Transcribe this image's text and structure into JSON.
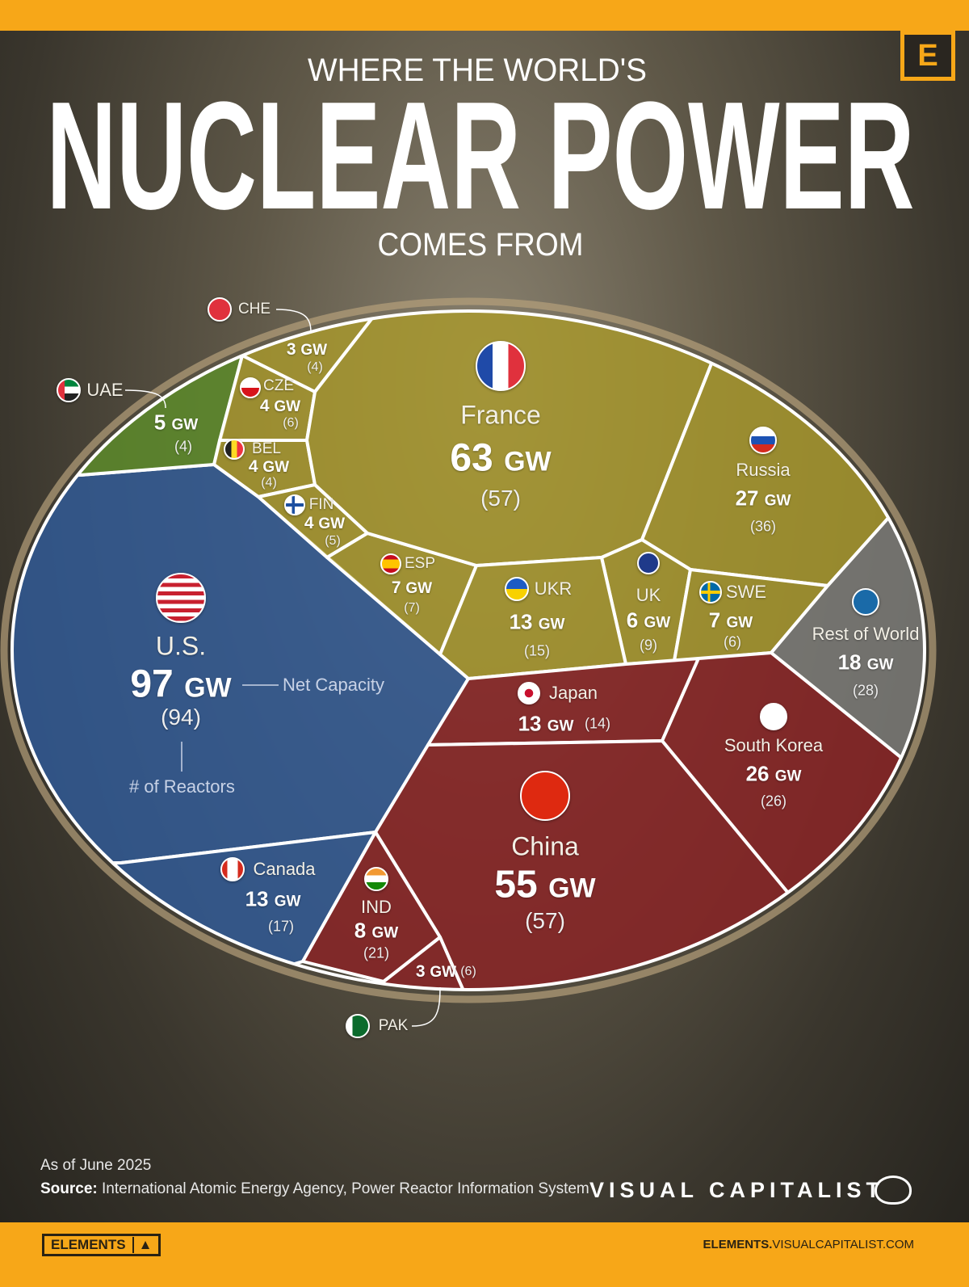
{
  "header": {
    "kicker": "WHERE THE WORLD'S",
    "title": "NUCLEAR POWER",
    "subtitle": "COMES FROM",
    "logo_letter": "E"
  },
  "annotations": {
    "net_capacity": "Net Capacity",
    "reactors": "# of Reactors"
  },
  "unit": "GW",
  "colors": {
    "north_america": "#2f5a98",
    "europe": "#a8982c",
    "middle_east": "#5d8c29",
    "asia": "#8b2224",
    "rest": "#7c7c7a",
    "accent": "#f7a718"
  },
  "chart_data": {
    "type": "treemap",
    "value_label": "Net Capacity (GW)",
    "secondary_label": "# of Reactors",
    "items": [
      {
        "name": "U.S.",
        "gw": 97,
        "reactors": 94,
        "group": "north_america"
      },
      {
        "name": "France",
        "gw": 63,
        "reactors": 57,
        "group": "europe"
      },
      {
        "name": "China",
        "gw": 55,
        "reactors": 57,
        "group": "asia"
      },
      {
        "name": "Russia",
        "gw": 27,
        "reactors": 36,
        "group": "europe"
      },
      {
        "name": "South Korea",
        "gw": 26,
        "reactors": 26,
        "group": "asia"
      },
      {
        "name": "Rest of World",
        "gw": 18,
        "reactors": 28,
        "group": "rest"
      },
      {
        "name": "Canada",
        "gw": 13,
        "reactors": 17,
        "group": "north_america"
      },
      {
        "name": "UKR",
        "gw": 13,
        "reactors": 15,
        "group": "europe"
      },
      {
        "name": "Japan",
        "gw": 13,
        "reactors": 14,
        "group": "asia"
      },
      {
        "name": "IND",
        "gw": 8,
        "reactors": 21,
        "group": "asia"
      },
      {
        "name": "ESP",
        "gw": 7,
        "reactors": 7,
        "group": "europe"
      },
      {
        "name": "SWE",
        "gw": 7,
        "reactors": 6,
        "group": "europe"
      },
      {
        "name": "UK",
        "gw": 6,
        "reactors": 9,
        "group": "europe"
      },
      {
        "name": "UAE",
        "gw": 5,
        "reactors": 4,
        "group": "middle_east"
      },
      {
        "name": "CZE",
        "gw": 4,
        "reactors": 6,
        "group": "europe"
      },
      {
        "name": "BEL",
        "gw": 4,
        "reactors": 4,
        "group": "europe"
      },
      {
        "name": "FIN",
        "gw": 4,
        "reactors": 5,
        "group": "europe"
      },
      {
        "name": "CHE",
        "gw": 3,
        "reactors": 4,
        "group": "europe"
      },
      {
        "name": "PAK",
        "gw": 3,
        "reactors": 6,
        "group": "asia"
      }
    ]
  },
  "footer": {
    "date": "As of June 2025",
    "source_label": "Source:",
    "source": "International Atomic Energy Agency, Power Reactor Information System",
    "brand": "VISUAL CAPITALIST",
    "elements_badge": "ELEMENTS",
    "url_bold": "ELEMENTS.",
    "url_rest": "VISUALCAPITALIST.COM"
  }
}
